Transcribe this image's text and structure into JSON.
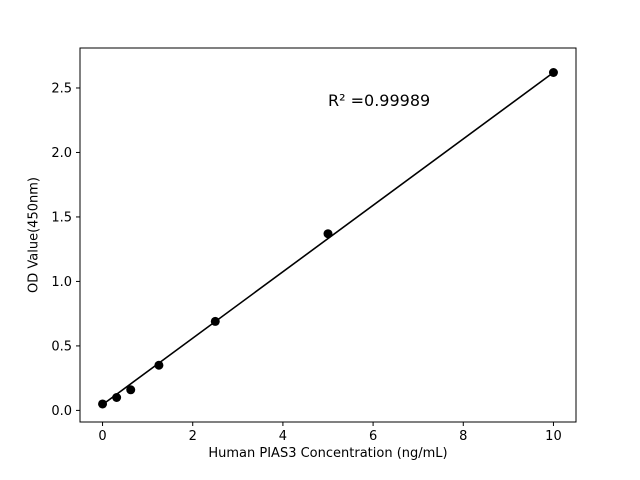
{
  "chart_data": {
    "type": "scatter",
    "title": "",
    "xlabel": "Human PIAS3 Concentration (ng/mL)",
    "ylabel": "OD Value(450nm)",
    "annotation": "R² =0.99989",
    "x": [
      0,
      0.3125,
      0.625,
      1.25,
      2.5,
      5,
      10
    ],
    "y": [
      0.05,
      0.1,
      0.16,
      0.35,
      0.69,
      1.37,
      2.62
    ],
    "fit_line": {
      "x": [
        0,
        10
      ],
      "y": [
        0.045,
        2.62
      ]
    },
    "xticks": [
      0,
      2,
      4,
      6,
      8,
      10
    ],
    "ytick_labels": [
      "0.0",
      "0.5",
      "1.0",
      "1.5",
      "2.0",
      "2.5"
    ],
    "yticks": [
      0.0,
      0.5,
      1.0,
      1.5,
      2.0,
      2.5
    ],
    "xlim": [
      -0.5,
      10.5
    ],
    "ylim": [
      -0.09,
      2.81
    ],
    "grid": false,
    "legend": "none",
    "point_color": "#000000",
    "line_color": "#000000",
    "axis_color": "#000000",
    "background": "#ffffff"
  }
}
